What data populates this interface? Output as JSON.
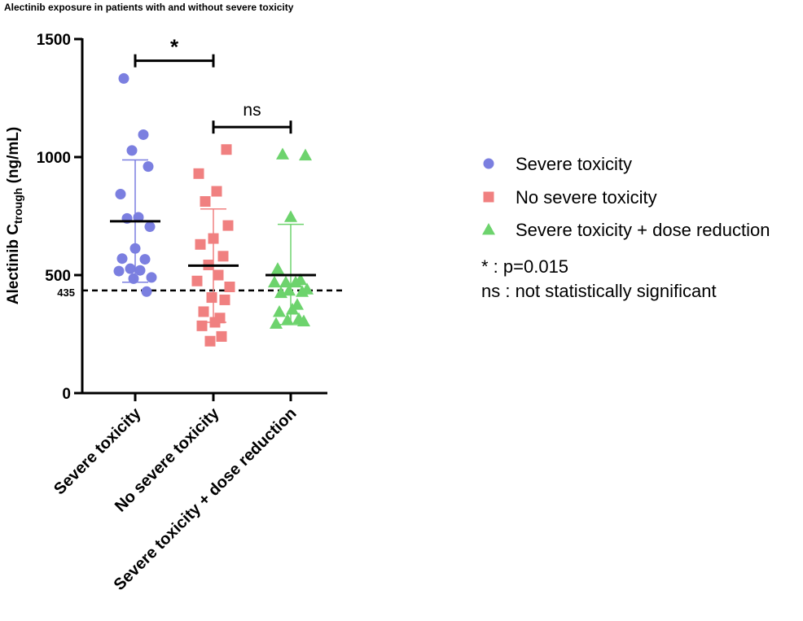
{
  "chart_data": {
    "type": "scatter",
    "title": "Alectinib exposure in patients with and without severe toxicity",
    "ylabel_main": "Alectinib C",
    "ylabel_sub": "trough",
    "ylabel_unit": " (ng/mL)",
    "ylim": [
      0,
      1500
    ],
    "yticks": [
      0,
      500,
      1000,
      1500
    ],
    "categories": [
      "Severe toxicity",
      "No severe toxicity",
      "Severe toxicity + dose reduction"
    ],
    "reference_line": {
      "value": 435,
      "label": "435",
      "style": "dashed"
    },
    "series": [
      {
        "name": "Severe toxicity",
        "marker": "circle",
        "color": "#7b7fe0",
        "values": [
          1333,
          1095,
          1028,
          960,
          843,
          745,
          740,
          705,
          613,
          570,
          567,
          527,
          520,
          517,
          490,
          485,
          430
        ],
        "mean": 728,
        "error_upper": 988,
        "error_lower": 470
      },
      {
        "name": "No severe toxicity",
        "marker": "square",
        "color": "#f08080",
        "values": [
          1032,
          930,
          855,
          812,
          710,
          655,
          630,
          580,
          543,
          500,
          475,
          450,
          405,
          395,
          345,
          318,
          300,
          285,
          240,
          220
        ],
        "mean": 540,
        "error_upper": 780,
        "error_lower": 300
      },
      {
        "name": "Severe toxicity + dose reduction",
        "marker": "triangle",
        "color": "#6dd36d",
        "values": [
          1012,
          1008,
          747,
          527,
          480,
          470,
          470,
          470,
          440,
          435,
          430,
          425,
          375,
          355,
          345,
          315,
          310,
          305,
          295
        ],
        "mean": 500,
        "error_upper": 715,
        "error_lower": 290
      }
    ],
    "significance": [
      {
        "from": 0,
        "to": 1,
        "label": "*",
        "y": 1408
      },
      {
        "from": 1,
        "to": 2,
        "label": "ns",
        "y": 1127
      }
    ],
    "legend": {
      "position": "right",
      "items": [
        "Severe toxicity",
        "No severe toxicity",
        "Severe toxicity + dose reduction"
      ],
      "notes": [
        "* : p=0.015",
        "ns : not statistically significant"
      ]
    },
    "grid": false
  }
}
